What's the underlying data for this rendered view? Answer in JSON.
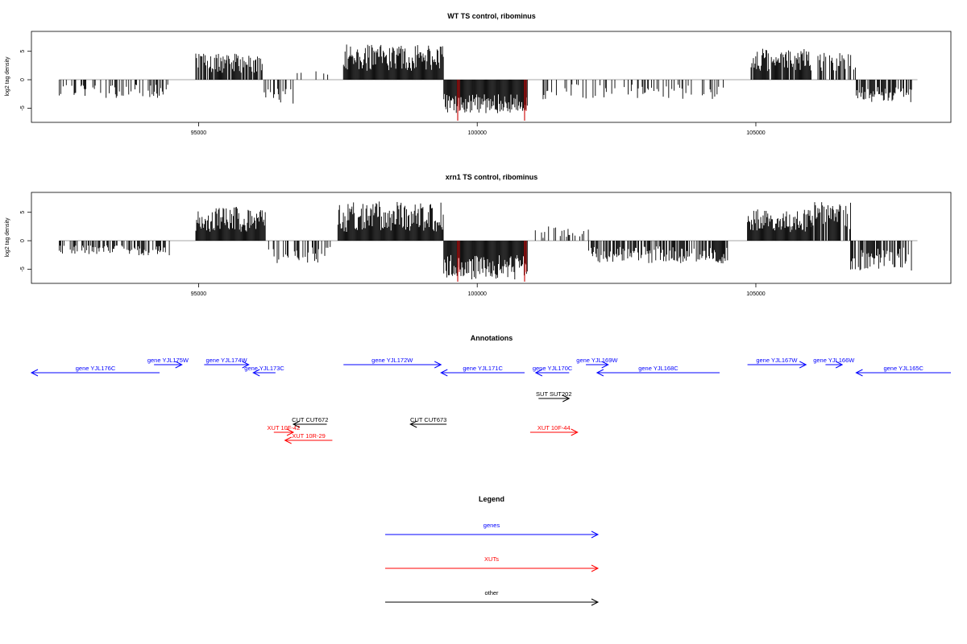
{
  "colors": {
    "genes": "#0000ff",
    "xuts": "#ff0000",
    "other": "#000000",
    "background": "#ffffff",
    "baseline": "#888888",
    "highlight": "#cc0000"
  },
  "chart_data": [
    {
      "type": "bar",
      "title": "WT TS control, ribominus",
      "ylabel": "log2 tag density",
      "xlim": [
        92000,
        108500
      ],
      "ylim": [
        -7.5,
        8.5
      ],
      "xticks": [
        95000,
        100000,
        105000
      ],
      "yticks": [
        -5,
        0,
        5
      ],
      "grid": false,
      "legend": "none",
      "highlights": [
        99650,
        100850
      ],
      "segments": [
        {
          "start": 92500,
          "end": 94500,
          "strand": "minus",
          "density": 0.3,
          "amp": [
            0.8,
            3.2
          ]
        },
        {
          "start": 94950,
          "end": 96150,
          "strand": "plus",
          "density": 0.9,
          "amp": [
            1.2,
            4.6
          ]
        },
        {
          "start": 96150,
          "end": 96700,
          "strand": "minus",
          "density": 0.5,
          "amp": [
            1.2,
            4.5
          ]
        },
        {
          "start": 96700,
          "end": 97600,
          "strand": "plus",
          "density": 0.05,
          "amp": [
            0.8,
            1.8
          ]
        },
        {
          "start": 97600,
          "end": 99400,
          "strand": "plus",
          "density": 1.0,
          "amp": [
            1.5,
            6.2
          ]
        },
        {
          "start": 99400,
          "end": 100900,
          "strand": "minus",
          "density": 1.0,
          "amp": [
            2.5,
            6.0
          ]
        },
        {
          "start": 101000,
          "end": 104500,
          "strand": "minus",
          "density": 0.25,
          "amp": [
            0.8,
            3.5
          ]
        },
        {
          "start": 104900,
          "end": 106000,
          "strand": "plus",
          "density": 0.9,
          "amp": [
            1.5,
            5.5
          ]
        },
        {
          "start": 106100,
          "end": 106800,
          "strand": "plus",
          "density": 0.5,
          "amp": [
            1.5,
            5.0
          ]
        },
        {
          "start": 106800,
          "end": 107800,
          "strand": "minus",
          "density": 0.7,
          "amp": [
            1.2,
            4.0
          ]
        }
      ]
    },
    {
      "type": "bar",
      "title": "xrn1 TS control, ribominus",
      "ylabel": "log2 tag density",
      "xlim": [
        92000,
        108500
      ],
      "ylim": [
        -7.5,
        8.5
      ],
      "xticks": [
        95000,
        100000,
        105000
      ],
      "yticks": [
        -5,
        0,
        5
      ],
      "grid": false,
      "legend": "none",
      "highlights": [
        99650,
        100850
      ],
      "segments": [
        {
          "start": 92500,
          "end": 94500,
          "strand": "minus",
          "density": 0.5,
          "amp": [
            0.8,
            2.6
          ]
        },
        {
          "start": 94950,
          "end": 96200,
          "strand": "plus",
          "density": 1.0,
          "amp": [
            1.5,
            6.0
          ]
        },
        {
          "start": 96200,
          "end": 97400,
          "strand": "minus",
          "density": 0.4,
          "amp": [
            1.0,
            4.0
          ]
        },
        {
          "start": 97500,
          "end": 99400,
          "strand": "plus",
          "density": 1.0,
          "amp": [
            1.5,
            7.0
          ]
        },
        {
          "start": 99400,
          "end": 100900,
          "strand": "minus",
          "density": 1.0,
          "amp": [
            2.5,
            6.8
          ]
        },
        {
          "start": 101000,
          "end": 102000,
          "strand": "plus",
          "density": 0.3,
          "amp": [
            0.5,
            2.5
          ]
        },
        {
          "start": 102000,
          "end": 104500,
          "strand": "minus",
          "density": 0.7,
          "amp": [
            1.0,
            4.0
          ]
        },
        {
          "start": 104850,
          "end": 106000,
          "strand": "plus",
          "density": 1.0,
          "amp": [
            1.5,
            5.5
          ]
        },
        {
          "start": 106000,
          "end": 106700,
          "strand": "plus",
          "density": 0.8,
          "amp": [
            2.0,
            7.0
          ]
        },
        {
          "start": 106700,
          "end": 107800,
          "strand": "minus",
          "density": 0.7,
          "amp": [
            1.2,
            5.5
          ]
        }
      ]
    }
  ],
  "annotations": {
    "title": "Annotations",
    "items": [
      {
        "label": "gene YJL176C",
        "start": 92000,
        "end": 94300,
        "strand": "minus",
        "kind": "gene",
        "row": 2
      },
      {
        "label": "gene YJL175W",
        "start": 94200,
        "end": 94700,
        "strand": "plus",
        "kind": "gene",
        "row": 1
      },
      {
        "label": "gene YJL174W",
        "start": 95100,
        "end": 95900,
        "strand": "plus",
        "kind": "gene",
        "row": 1
      },
      {
        "label": "gene YJL173C",
        "start": 95980,
        "end": 96380,
        "strand": "minus",
        "kind": "gene",
        "row": 2
      },
      {
        "label": "gene YJL172W",
        "start": 97600,
        "end": 99350,
        "strand": "plus",
        "kind": "gene",
        "row": 1
      },
      {
        "label": "gene YJL171C",
        "start": 99350,
        "end": 100850,
        "strand": "minus",
        "kind": "gene",
        "row": 2
      },
      {
        "label": "gene YJL170C",
        "start": 101050,
        "end": 101650,
        "strand": "minus",
        "kind": "gene",
        "row": 2
      },
      {
        "label": "gene YJL169W",
        "start": 101950,
        "end": 102350,
        "strand": "plus",
        "kind": "gene",
        "row": 1
      },
      {
        "label": "gene YJL168C",
        "start": 102150,
        "end": 104350,
        "strand": "minus",
        "kind": "gene",
        "row": 2
      },
      {
        "label": "gene YJL167W",
        "start": 104850,
        "end": 105900,
        "strand": "plus",
        "kind": "gene",
        "row": 1
      },
      {
        "label": "gene YJL166W",
        "start": 106250,
        "end": 106550,
        "strand": "plus",
        "kind": "gene",
        "row": 1
      },
      {
        "label": "gene YJL165C",
        "start": 106800,
        "end": 108500,
        "strand": "minus",
        "kind": "gene",
        "row": 2
      },
      {
        "label": "SUT SUT202",
        "start": 101100,
        "end": 101650,
        "strand": "plus",
        "kind": "other",
        "row": 3
      },
      {
        "label": "CUT CUT672",
        "start": 96700,
        "end": 97300,
        "strand": "minus",
        "kind": "other",
        "row": 4
      },
      {
        "label": "CUT CUT673",
        "start": 98800,
        "end": 99450,
        "strand": "minus",
        "kind": "other",
        "row": 4
      },
      {
        "label": "XUT 10F-42",
        "start": 96350,
        "end": 96700,
        "strand": "plus",
        "kind": "xut",
        "row": 5
      },
      {
        "label": "XUT 10F-44",
        "start": 100950,
        "end": 101800,
        "strand": "plus",
        "kind": "xut",
        "row": 5
      },
      {
        "label": "XUT 10R-29",
        "start": 96550,
        "end": 97400,
        "strand": "minus",
        "kind": "xut",
        "row": 6
      }
    ]
  },
  "legend": {
    "title": "Legend",
    "entries": [
      {
        "label": "genes",
        "kind": "gene"
      },
      {
        "label": "XUTs",
        "kind": "xut"
      },
      {
        "label": "other",
        "kind": "other"
      }
    ]
  }
}
